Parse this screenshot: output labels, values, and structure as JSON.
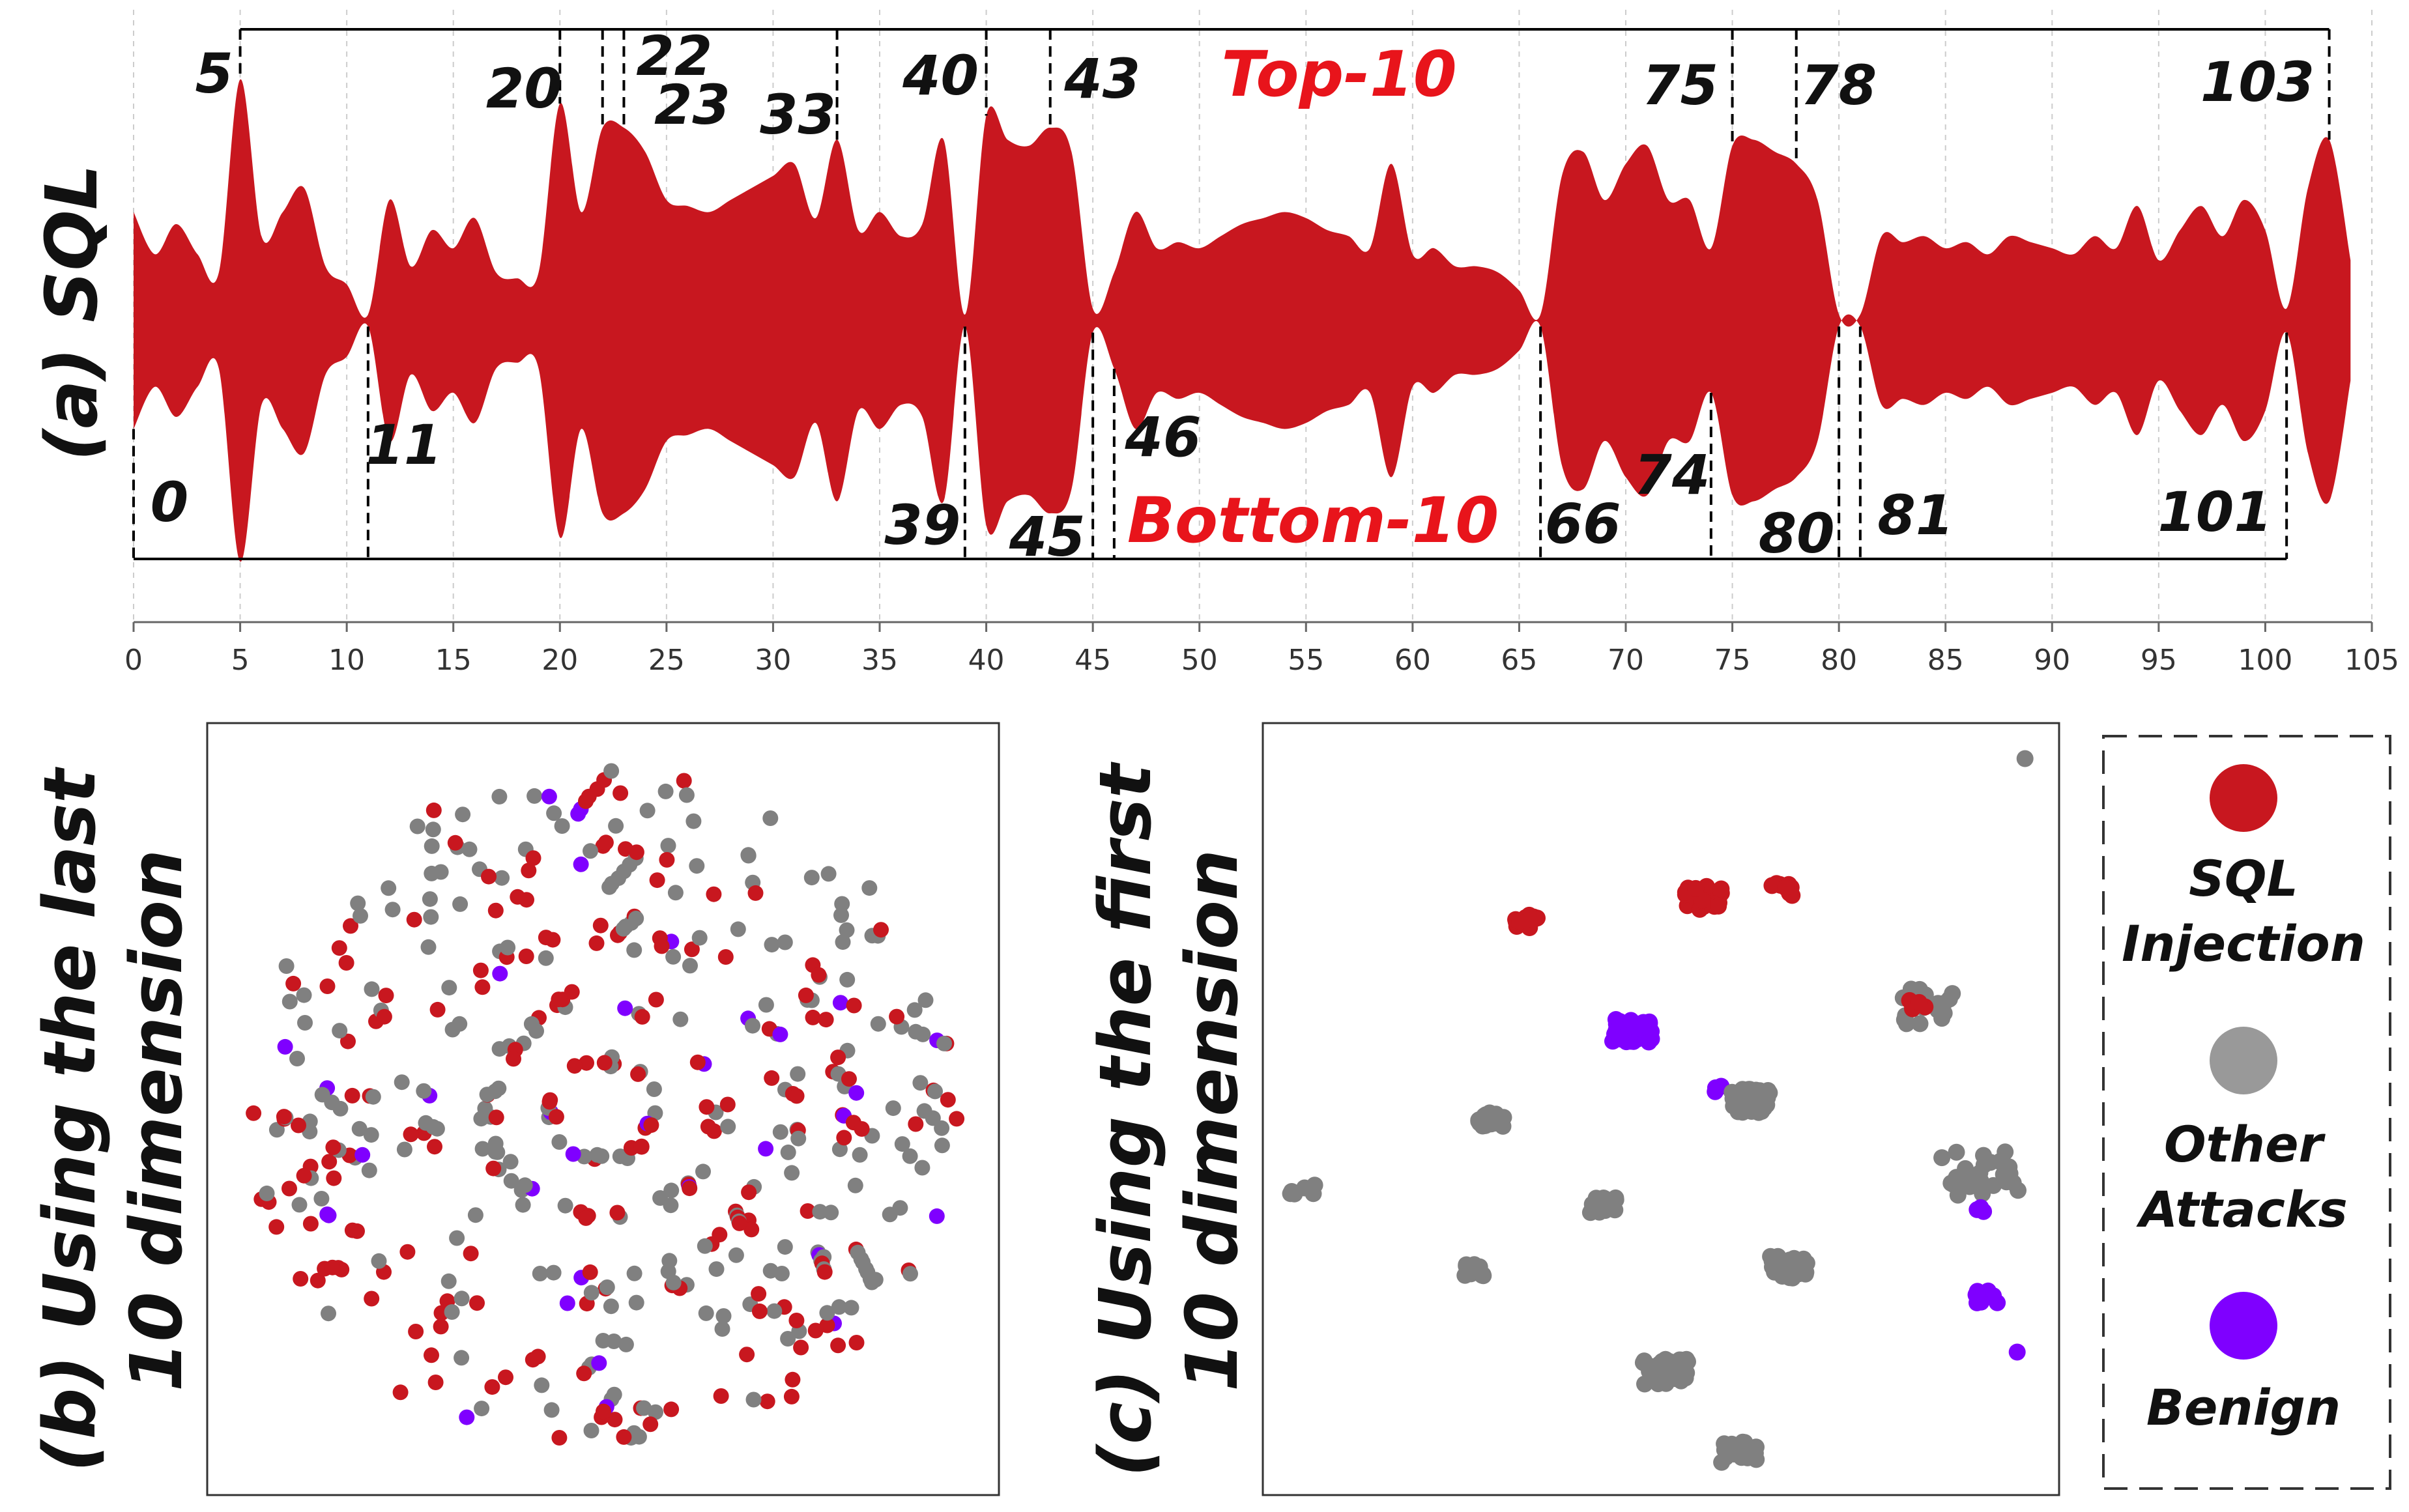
{
  "colors": {
    "shape": "#c8171f",
    "sql": "#c8171f",
    "other": "#808080",
    "benign": "#7f00ff",
    "annotation_red": "#e8141b"
  },
  "panel_a": {
    "label": "(a) SQL",
    "top_label": "Top-10",
    "bottom_label": "Bottom-10",
    "top10": [
      5,
      20,
      22,
      23,
      33,
      40,
      43,
      75,
      78,
      103
    ],
    "bottom10": [
      0,
      11,
      39,
      45,
      46,
      66,
      74,
      80,
      81,
      101
    ],
    "x_ticks": [
      "0",
      "5",
      "10",
      "15",
      "20",
      "25",
      "30",
      "35",
      "40",
      "45",
      "50",
      "55",
      "60",
      "65",
      "70",
      "75",
      "80",
      "85",
      "90",
      "95",
      "100",
      "105"
    ]
  },
  "panel_b": {
    "label_line1": "(b) Using the last",
    "label_line2": "10 dimension"
  },
  "panel_c": {
    "label_line1": "(c) Using the first",
    "label_line2": "10 dimension"
  },
  "legend": {
    "sql_line1": "SQL",
    "sql_line2": "Injection",
    "other_line1": "Other",
    "other_line2": "Attacks",
    "benign": "Benign"
  },
  "chart_data": [
    {
      "type": "area",
      "title": "(a) SQL",
      "xlim": [
        0,
        105
      ],
      "x": [
        0,
        1,
        2,
        3,
        4,
        5,
        6,
        7,
        8,
        9,
        10,
        11,
        12,
        13,
        14,
        15,
        16,
        17,
        18,
        19,
        20,
        21,
        22,
        23,
        24,
        25,
        26,
        27,
        28,
        29,
        30,
        31,
        32,
        33,
        34,
        35,
        36,
        37,
        38,
        39,
        40,
        41,
        42,
        43,
        44,
        45,
        46,
        47,
        48,
        49,
        50,
        51,
        52,
        53,
        54,
        55,
        56,
        57,
        58,
        59,
        60,
        61,
        62,
        63,
        64,
        65,
        66,
        67,
        68,
        69,
        70,
        71,
        72,
        73,
        74,
        75,
        76,
        77,
        78,
        79,
        80,
        81,
        82,
        83,
        84,
        85,
        86,
        87,
        88,
        89,
        90,
        91,
        92,
        93,
        94,
        95,
        96,
        97,
        98,
        99,
        100,
        101,
        102,
        103,
        104
      ],
      "series": [
        {
          "values": [
            0.9,
            0.55,
            0.8,
            0.55,
            0.4,
            2.0,
            0.7,
            0.9,
            1.1,
            0.45,
            0.3,
            0.05,
            1.0,
            0.45,
            0.75,
            0.6,
            0.85,
            0.4,
            0.35,
            0.4,
            1.8,
            0.9,
            1.6,
            1.6,
            1.4,
            1.0,
            0.95,
            0.9,
            1.0,
            1.1,
            1.2,
            1.3,
            0.85,
            1.5,
            0.75,
            0.9,
            0.7,
            0.8,
            1.5,
            0.05,
            1.7,
            1.5,
            1.45,
            1.6,
            1.4,
            0.1,
            0.4,
            0.9,
            0.6,
            0.65,
            0.6,
            0.7,
            0.8,
            0.85,
            0.9,
            0.85,
            0.75,
            0.7,
            0.6,
            1.3,
            0.55,
            0.6,
            0.45,
            0.45,
            0.4,
            0.25,
            0.05,
            1.2,
            1.4,
            1.0,
            1.3,
            1.45,
            1.0,
            1.0,
            0.6,
            1.45,
            1.5,
            1.4,
            1.3,
            1.0,
            0.05,
            0.05,
            0.7,
            0.65,
            0.7,
            0.6,
            0.65,
            0.55,
            0.7,
            0.65,
            0.6,
            0.55,
            0.7,
            0.6,
            0.95,
            0.5,
            0.75,
            0.95,
            0.7,
            1.0,
            0.75,
            0.1,
            1.1,
            1.5,
            0.5
          ]
        }
      ]
    },
    {
      "type": "scatter",
      "title": "(b) Using the last 10 dimension",
      "series": [
        {
          "name": "SQL Injection",
          "x": [],
          "y": []
        },
        {
          "name": "Other Attacks",
          "x": [],
          "y": []
        },
        {
          "name": "Benign",
          "x": [],
          "y": []
        }
      ]
    },
    {
      "type": "scatter",
      "title": "(c) Using the first 10 dimension",
      "series": [
        {
          "name": "SQL Injection",
          "x": [],
          "y": []
        },
        {
          "name": "Other Attacks",
          "x": [],
          "y": []
        },
        {
          "name": "Benign",
          "x": [],
          "y": []
        }
      ]
    }
  ]
}
